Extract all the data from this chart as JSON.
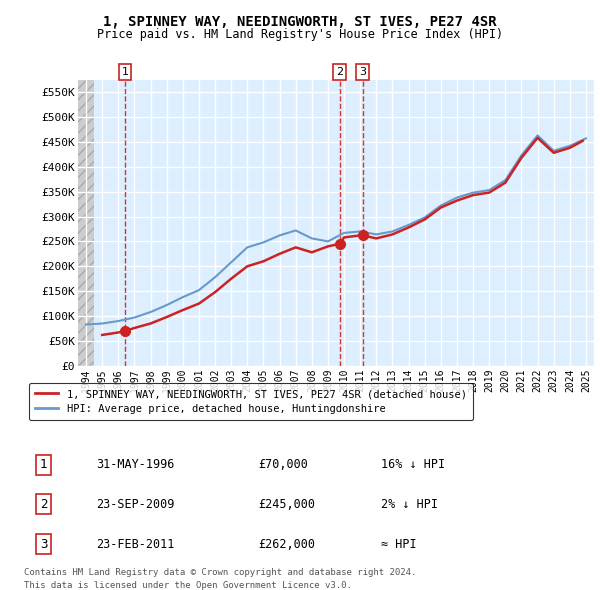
{
  "title1": "1, SPINNEY WAY, NEEDINGWORTH, ST IVES, PE27 4SR",
  "title2": "Price paid vs. HM Land Registry's House Price Index (HPI)",
  "ylabel_vals": [
    "£0",
    "£50K",
    "£100K",
    "£150K",
    "£200K",
    "£250K",
    "£300K",
    "£350K",
    "£400K",
    "£450K",
    "£500K",
    "£550K"
  ],
  "ylabel_nums": [
    0,
    50000,
    100000,
    150000,
    200000,
    250000,
    300000,
    350000,
    400000,
    450000,
    500000,
    550000
  ],
  "xlim": [
    1993.5,
    2025.5
  ],
  "ylim": [
    0,
    575000
  ],
  "legend_line1": "1, SPINNEY WAY, NEEDINGWORTH, ST IVES, PE27 4SR (detached house)",
  "legend_line2": "HPI: Average price, detached house, Huntingdonshire",
  "sales": [
    {
      "num": 1,
      "date": "31-MAY-1996",
      "price": 70000,
      "note": "16% ↓ HPI",
      "x": 1996.42
    },
    {
      "num": 2,
      "date": "23-SEP-2009",
      "price": 245000,
      "note": "2% ↓ HPI",
      "x": 2009.73
    },
    {
      "num": 3,
      "date": "23-FEB-2011",
      "price": 262000,
      "note": "≈ HPI",
      "x": 2011.15
    }
  ],
  "footnote1": "Contains HM Land Registry data © Crown copyright and database right 2024.",
  "footnote2": "This data is licensed under the Open Government Licence v3.0.",
  "hpi_color": "#6699cc",
  "price_color": "#cc2222",
  "background_plot": "#ddeeff",
  "grid_color": "#ffffff",
  "vline_color": "#cc2222",
  "hpi_years": [
    1994,
    1995,
    1996,
    1997,
    1998,
    1999,
    2000,
    2001,
    2002,
    2003,
    2004,
    2005,
    2006,
    2007,
    2008,
    2009,
    2010,
    2011,
    2012,
    2013,
    2014,
    2015,
    2016,
    2017,
    2018,
    2019,
    2020,
    2021,
    2022,
    2023,
    2024,
    2025
  ],
  "hpi_values": [
    83000,
    85000,
    90000,
    97000,
    108000,
    122000,
    138000,
    152000,
    178000,
    208000,
    238000,
    248000,
    262000,
    272000,
    256000,
    250000,
    267000,
    270000,
    264000,
    270000,
    283000,
    298000,
    322000,
    338000,
    348000,
    353000,
    373000,
    423000,
    463000,
    432000,
    442000,
    457000
  ],
  "red_years": [
    1995.0,
    1996.0,
    1996.42,
    1997,
    1998,
    1999,
    2000,
    2001,
    2002,
    2003,
    2004,
    2005,
    2006,
    2007,
    2008,
    2009,
    2009.73,
    2010,
    2011,
    2011.15,
    2012,
    2013,
    2014,
    2015,
    2016,
    2017,
    2018,
    2019,
    2020,
    2021,
    2022,
    2023,
    2024,
    2024.8
  ],
  "red_values": [
    62000,
    67000,
    70000,
    76000,
    85000,
    98000,
    112000,
    125000,
    148000,
    175000,
    200000,
    210000,
    225000,
    238000,
    228000,
    240000,
    245000,
    258000,
    262000,
    262000,
    256000,
    264000,
    278000,
    294000,
    318000,
    332000,
    343000,
    348000,
    368000,
    418000,
    458000,
    428000,
    438000,
    452000
  ]
}
